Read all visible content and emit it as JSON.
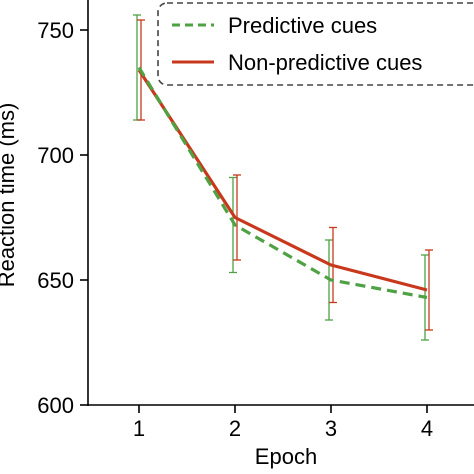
{
  "chart_data": {
    "type": "line",
    "xlabel": "Epoch",
    "ylabel": "Reaction time (ms)",
    "x": [
      1,
      2,
      3,
      4
    ],
    "x_ticks": [
      "1",
      "2",
      "3",
      "4"
    ],
    "y_ticks": [
      "600",
      "650",
      "700",
      "750"
    ],
    "xlim": [
      0.5,
      4.5
    ],
    "ylim": [
      600,
      760
    ],
    "grid": false,
    "legend_placement": "top-right",
    "series": [
      {
        "name": "Predictive cues",
        "values": [
          735,
          672,
          650,
          643
        ],
        "error": [
          21,
          19,
          16,
          17
        ],
        "color": "#4fa243",
        "style": "dashed"
      },
      {
        "name": "Non-predictive cues",
        "values": [
          734,
          675,
          656,
          646
        ],
        "error": [
          20,
          17,
          15,
          16
        ],
        "color": "#c8381c",
        "style": "solid"
      }
    ]
  }
}
